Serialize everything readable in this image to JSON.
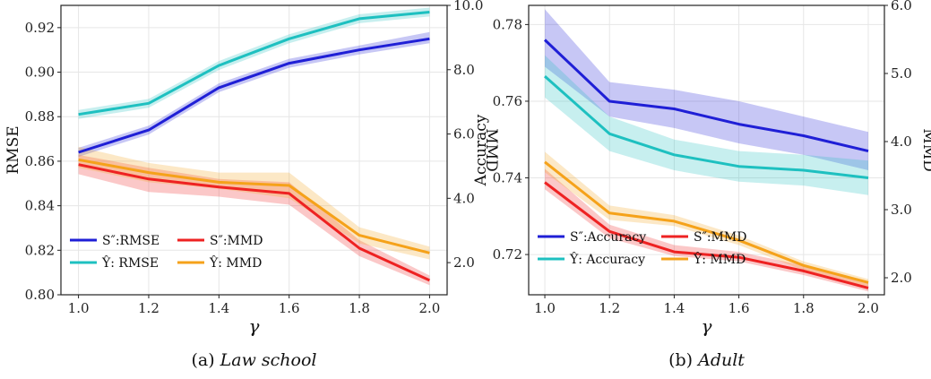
{
  "chart_data": [
    {
      "type": "line",
      "caption_prefix": "(a) ",
      "caption_title": "Law school",
      "xlabel": "γ",
      "ylabel": "RMSE",
      "ylabel_right": "MMD",
      "x": [
        1.0,
        1.2,
        1.4,
        1.6,
        1.8,
        2.0
      ],
      "xlim": [
        0.95,
        2.05
      ],
      "xticks": [
        "1.0",
        "1.2",
        "1.4",
        "1.6",
        "1.8",
        "2.0"
      ],
      "ylim_left": [
        0.8,
        0.93
      ],
      "yticks_left": [
        "0.80",
        "0.82",
        "0.84",
        "0.86",
        "0.88",
        "0.90",
        "0.92"
      ],
      "ylim_right": [
        1.0,
        10.0
      ],
      "yticks_right": [
        "2.0",
        "4.0",
        "6.0",
        "8.0",
        "10.0"
      ],
      "grid": true,
      "legend_position": "bottom-left",
      "series": [
        {
          "name": "S″:RMSE",
          "axis": "left",
          "color": "#1f1fd6",
          "values": [
            0.864,
            0.874,
            0.893,
            0.904,
            0.91,
            0.915
          ],
          "lower": [
            0.862,
            0.872,
            0.891,
            0.902,
            0.908,
            0.913
          ],
          "upper": [
            0.866,
            0.876,
            0.895,
            0.906,
            0.912,
            0.918
          ]
        },
        {
          "name": "Ŷ:  RMSE",
          "axis": "left",
          "color": "#1ec0c0",
          "values": [
            0.881,
            0.886,
            0.903,
            0.915,
            0.924,
            0.927
          ],
          "lower": [
            0.879,
            0.884,
            0.901,
            0.913,
            0.922,
            0.925
          ],
          "upper": [
            0.883,
            0.888,
            0.905,
            0.917,
            0.926,
            0.929
          ]
        },
        {
          "name": "S″:MMD",
          "axis": "right",
          "color": "#ee2222",
          "values": [
            5.05,
            4.6,
            4.35,
            4.15,
            2.45,
            1.45
          ],
          "lower": [
            4.75,
            4.2,
            4.05,
            3.8,
            2.2,
            1.3
          ],
          "upper": [
            5.35,
            4.95,
            4.6,
            4.5,
            2.7,
            1.6
          ]
        },
        {
          "name": "Ŷ:  MMD",
          "axis": "right",
          "color": "#f5a21a",
          "values": [
            5.2,
            4.8,
            4.5,
            4.4,
            2.85,
            2.3
          ],
          "lower": [
            4.95,
            4.5,
            4.3,
            4.0,
            2.6,
            2.1
          ],
          "upper": [
            5.6,
            5.1,
            4.8,
            4.8,
            3.1,
            2.5
          ]
        }
      ]
    },
    {
      "type": "line",
      "caption_prefix": "(b) ",
      "caption_title": "Adult",
      "xlabel": "γ",
      "ylabel": "Accuracy",
      "ylabel_right": "MMD",
      "x": [
        1.0,
        1.2,
        1.4,
        1.6,
        1.8,
        2.0
      ],
      "xlim": [
        0.95,
        2.05
      ],
      "xticks": [
        "1.0",
        "1.2",
        "1.4",
        "1.6",
        "1.8",
        "2.0"
      ],
      "ylim_left": [
        0.7095,
        0.785
      ],
      "yticks_left": [
        "0.72",
        "0.74",
        "0.76",
        "0.78"
      ],
      "ylim_right": [
        1.75,
        6.0
      ],
      "yticks_right": [
        "2.0",
        "3.0",
        "4.0",
        "5.0",
        "6.0"
      ],
      "grid": true,
      "legend_position": "bottom-left",
      "series": [
        {
          "name": "S″:Accuracy",
          "axis": "left",
          "color": "#1f1fd6",
          "values": [
            0.776,
            0.76,
            0.758,
            0.754,
            0.751,
            0.747
          ],
          "lower": [
            0.769,
            0.756,
            0.753,
            0.749,
            0.746,
            0.742
          ],
          "upper": [
            0.784,
            0.765,
            0.763,
            0.76,
            0.756,
            0.752
          ]
        },
        {
          "name": "Ŷ:  Accuracy",
          "axis": "left",
          "color": "#1ec0c0",
          "values": [
            0.7665,
            0.7515,
            0.746,
            0.743,
            0.742,
            0.74
          ],
          "lower": [
            0.761,
            0.747,
            0.742,
            0.739,
            0.738,
            0.7355
          ],
          "upper": [
            0.772,
            0.756,
            0.75,
            0.747,
            0.746,
            0.7445
          ]
        },
        {
          "name": "S″:MMD",
          "axis": "right",
          "color": "#ee2222",
          "values": [
            3.4,
            2.68,
            2.38,
            2.3,
            2.1,
            1.85
          ],
          "lower": [
            3.3,
            2.58,
            2.32,
            2.24,
            2.04,
            1.8
          ],
          "upper": [
            3.6,
            2.78,
            2.48,
            2.38,
            2.18,
            1.92
          ]
        },
        {
          "name": "Ŷ:  MMD",
          "axis": "right",
          "color": "#f5a21a",
          "values": [
            3.7,
            2.95,
            2.83,
            2.55,
            2.18,
            1.93
          ],
          "lower": [
            3.55,
            2.85,
            2.76,
            2.48,
            2.11,
            1.87
          ],
          "upper": [
            3.85,
            3.06,
            2.92,
            2.62,
            2.24,
            1.98
          ]
        }
      ]
    }
  ]
}
